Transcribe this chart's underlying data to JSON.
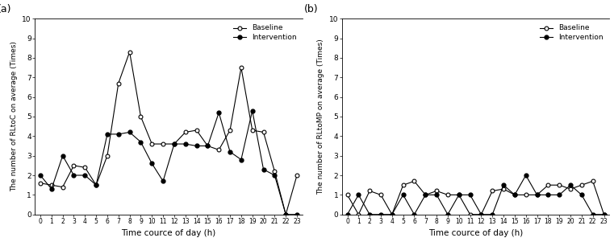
{
  "panel_a": {
    "label": "(a)",
    "xlabel": "Time cource of day (h)",
    "ylabel": "The number of RLtoC on average (Times)",
    "ylim": [
      0,
      10
    ],
    "yticks": [
      0,
      1,
      2,
      3,
      4,
      5,
      6,
      7,
      8,
      9,
      10
    ],
    "xticks": [
      0,
      1,
      2,
      3,
      4,
      5,
      6,
      7,
      8,
      9,
      10,
      11,
      12,
      13,
      14,
      15,
      16,
      17,
      18,
      19,
      20,
      21,
      22,
      23
    ],
    "baseline": [
      1.6,
      1.5,
      1.4,
      2.5,
      2.4,
      1.5,
      3.0,
      6.7,
      8.3,
      5.0,
      3.6,
      3.6,
      3.6,
      4.2,
      4.3,
      3.5,
      3.3,
      4.3,
      7.5,
      4.3,
      4.2,
      2.2,
      0.0,
      2.0
    ],
    "intervention": [
      2.0,
      1.3,
      3.0,
      2.0,
      2.0,
      1.5,
      4.1,
      4.1,
      4.2,
      3.7,
      2.6,
      1.7,
      3.6,
      3.6,
      3.5,
      3.5,
      5.2,
      3.2,
      2.8,
      5.3,
      2.3,
      2.0,
      0.0,
      0.0
    ]
  },
  "panel_b": {
    "label": "(b)",
    "xlabel": "Time cource of day (h)",
    "ylabel": "The number of RLtoMP on average (Times)",
    "ylim": [
      0,
      10
    ],
    "yticks": [
      0,
      1,
      2,
      3,
      4,
      5,
      6,
      7,
      8,
      9,
      10
    ],
    "xticks": [
      0,
      1,
      2,
      3,
      4,
      5,
      6,
      7,
      8,
      9,
      10,
      11,
      12,
      13,
      14,
      15,
      16,
      17,
      18,
      19,
      20,
      21,
      22,
      23
    ],
    "baseline": [
      1.0,
      0.0,
      1.2,
      1.0,
      0.0,
      1.5,
      1.7,
      1.0,
      1.2,
      1.0,
      1.0,
      0.0,
      0.0,
      1.2,
      1.3,
      1.0,
      1.0,
      1.0,
      1.5,
      1.5,
      1.3,
      1.5,
      1.7,
      0.0
    ],
    "intervention": [
      0.0,
      1.0,
      0.0,
      0.0,
      0.0,
      1.0,
      0.0,
      1.0,
      1.0,
      0.0,
      1.0,
      1.0,
      0.0,
      0.0,
      1.5,
      1.0,
      2.0,
      1.0,
      1.0,
      1.0,
      1.5,
      1.0,
      0.0,
      0.0
    ]
  },
  "legend": {
    "baseline_label": "Baseline",
    "intervention_label": "Intervention"
  },
  "colors": {
    "baseline_marker": "white",
    "baseline_edge": "black",
    "intervention_marker": "black",
    "line": "black"
  },
  "figsize": [
    7.61,
    3.01
  ],
  "dpi": 100
}
